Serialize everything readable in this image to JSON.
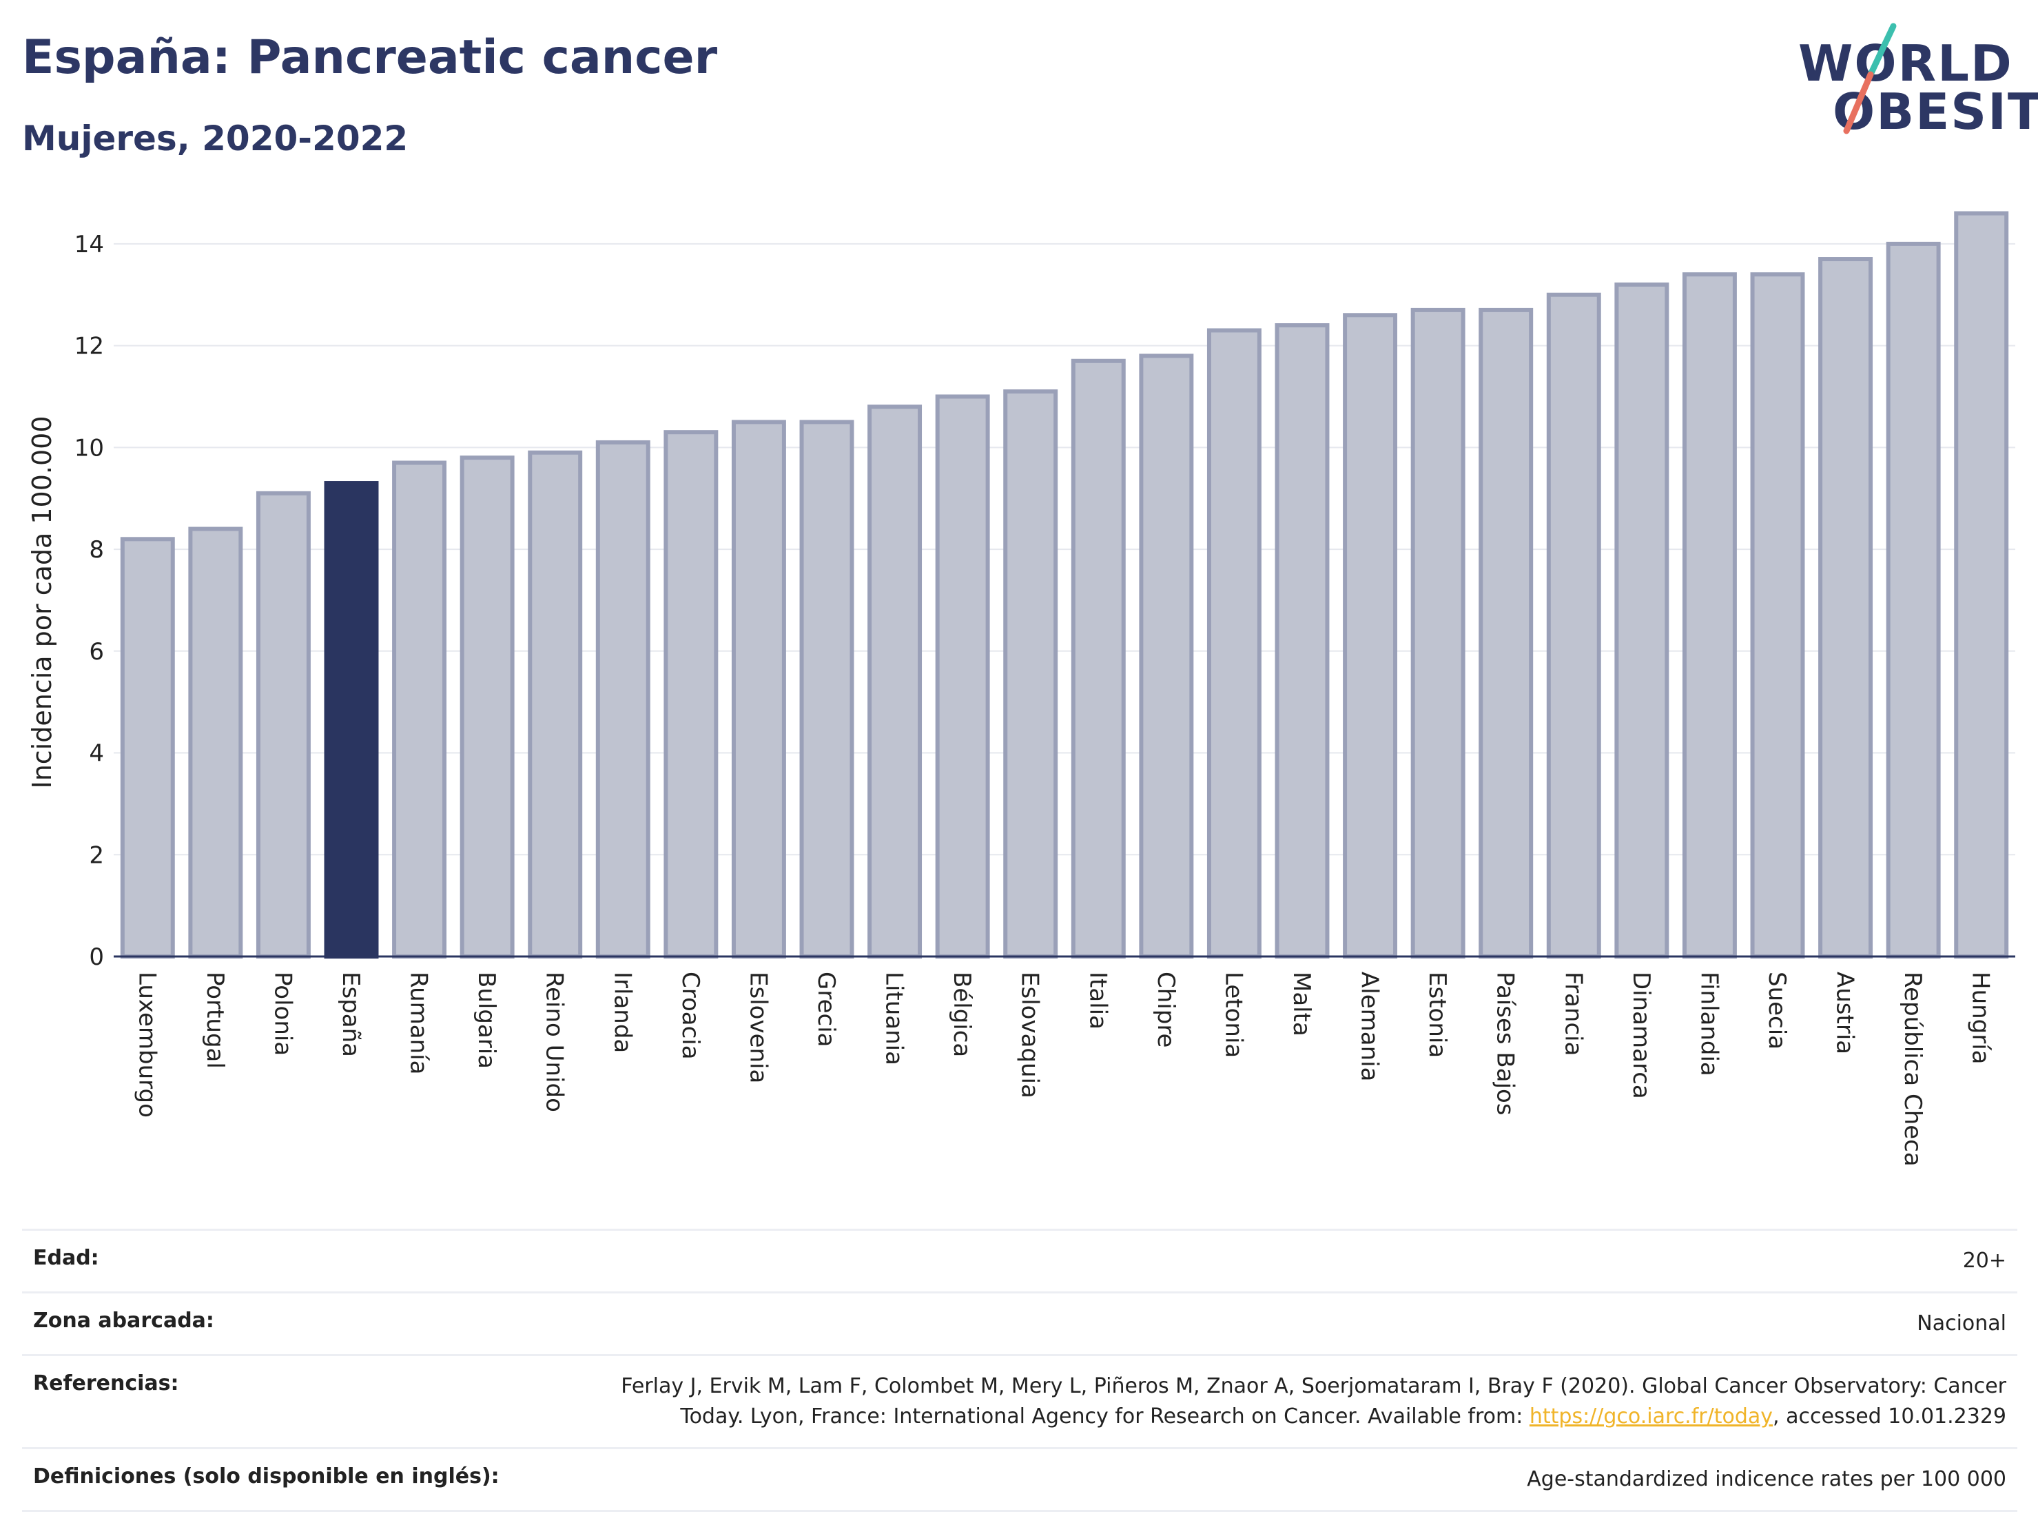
{
  "header": {
    "title": "España: Pancreatic cancer",
    "subtitle": "Mujeres, 2020-2022"
  },
  "logo": {
    "line1": "WORLD",
    "line2": "OBESITY",
    "colors": {
      "text": "#2d3764",
      "accent_teal": "#3cbfae",
      "accent_coral": "#e8705f"
    }
  },
  "colors": {
    "bar_default": "#bfc3d0",
    "bar_default_stroke": "#9aa0b8",
    "bar_highlight": "#2a3560",
    "grid": "#e6e8ee"
  },
  "chart_data": {
    "type": "bar",
    "title": "",
    "xlabel": "",
    "ylabel": "Incidencia por cada 100.000",
    "ylim": [
      0,
      15
    ],
    "yticks": [
      0,
      2,
      4,
      6,
      8,
      10,
      12,
      14
    ],
    "grid": true,
    "highlight": "España",
    "categories": [
      "Luxemburgo",
      "Portugal",
      "Polonia",
      "España",
      "Rumanía",
      "Bulgaria",
      "Reino Unido",
      "Irlanda",
      "Croacia",
      "Eslovenia",
      "Grecia",
      "Lituania",
      "Bélgica",
      "Eslovaquia",
      "Italia",
      "Chipre",
      "Letonia",
      "Malta",
      "Alemania",
      "Estonia",
      "Países Bajos",
      "Francia",
      "Dinamarca",
      "Finlandia",
      "Suecia",
      "Austria",
      "República Checa",
      "Hungría"
    ],
    "values": [
      8.2,
      8.4,
      9.1,
      9.3,
      9.7,
      9.8,
      9.9,
      10.1,
      10.3,
      10.5,
      10.5,
      10.8,
      11.0,
      11.1,
      11.7,
      11.8,
      12.3,
      12.4,
      12.6,
      12.7,
      12.7,
      13.0,
      13.2,
      13.4,
      13.4,
      13.7,
      14.0,
      14.6
    ]
  },
  "meta": [
    {
      "key": "Edad:",
      "value": "20+"
    },
    {
      "key": "Zona abarcada:",
      "value": "Nacional"
    },
    {
      "key": "Referencias:",
      "value_line1": "Ferlay J, Ervik M, Lam F, Colombet M, Mery L, Piñeros M, Znaor A, Soerjomataram I, Bray F (2020). Global Cancer Observatory: Cancer",
      "value_line2_pre": "Today. Lyon, France: International Agency for Research on Cancer. Available from: ",
      "link": "https://gco.iarc.fr/today",
      "value_line2_post": ", accessed 10.01.2329"
    },
    {
      "key": "Definiciones (solo disponible en inglés):",
      "value": "Age-standardized indicence rates per 100 000"
    }
  ]
}
